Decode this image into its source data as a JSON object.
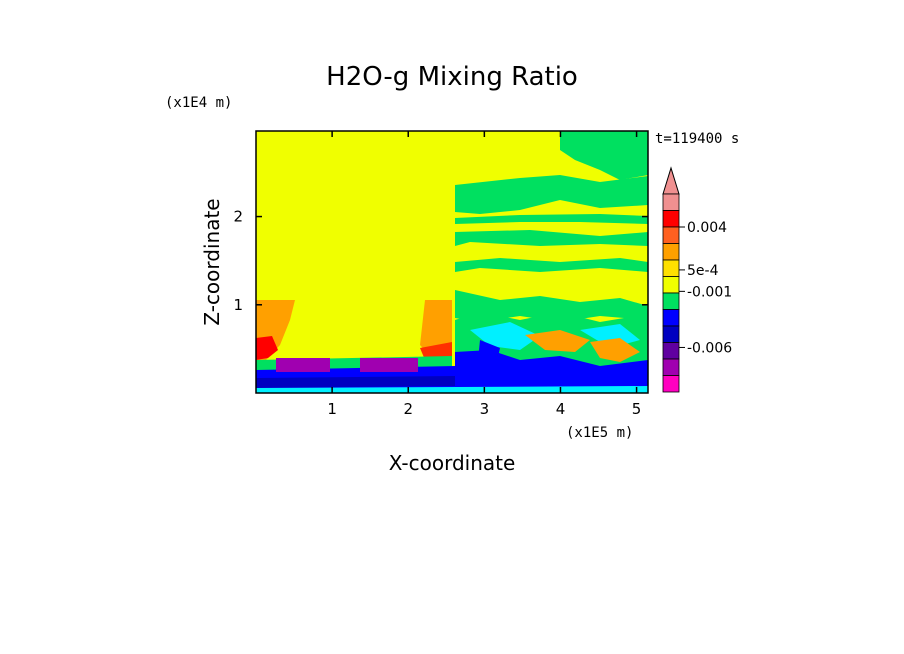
{
  "chart_data": {
    "type": "heatmap",
    "title": "H2O-g Mixing Ratio",
    "xlabel": "X-coordinate",
    "ylabel": "Z-coordinate",
    "x_unit": "(x1E5 m)",
    "y_unit": "(x1E4 m)",
    "time_label": "t=119400 s",
    "xlim": [
      0,
      5.15
    ],
    "ylim": [
      0,
      2.97
    ],
    "x_ticks": [
      1,
      2,
      3,
      4,
      5
    ],
    "y_ticks": [
      1,
      2
    ],
    "colorbar": {
      "labels": [
        {
          "text": "0.004",
          "value": 0.004
        },
        {
          "text": "5e-4",
          "value": 0.0005
        },
        {
          "text": "-0.001",
          "value": -0.001
        },
        {
          "text": "-0.006",
          "value": -0.006
        }
      ],
      "colors_top_to_bottom": [
        "#f09090",
        "#ff0000",
        "#ff6020",
        "#ffa000",
        "#ffe000",
        "#f0ff00",
        "#00e060",
        "#0000ff",
        "#0000c0",
        "#6000a0",
        "#a000b0",
        "#ff00c0"
      ]
    }
  }
}
